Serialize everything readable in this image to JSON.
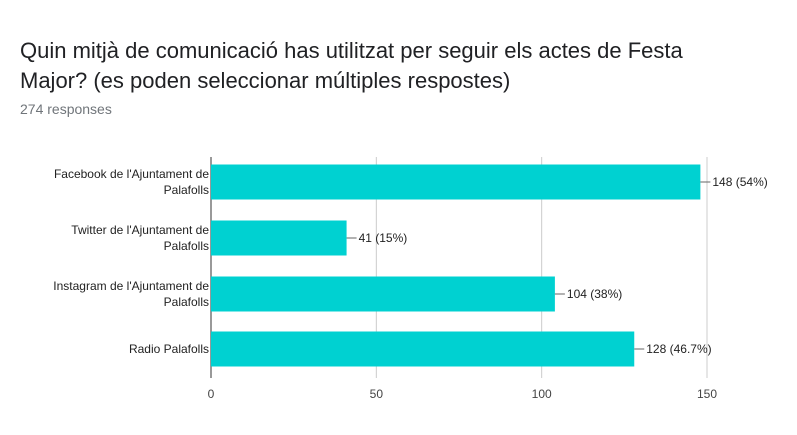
{
  "question": {
    "title": "Quin mitjà de comunicació has utilitzat per seguir els actes de Festa Major? (es poden seleccionar múltiples respostes)",
    "responses": "274 responses"
  },
  "chart_data": {
    "type": "bar",
    "orientation": "horizontal",
    "title": "",
    "xlabel": "",
    "ylabel": "",
    "bar_color": "#00d1d1",
    "categories": [
      [
        "Facebook de l'Ajuntament de",
        "Palafolls"
      ],
      [
        "Twitter de l'Ajuntament de",
        "Palafolls"
      ],
      [
        "Instagram de l'Ajuntament de",
        "Palafolls"
      ],
      [
        "Radio Palafolls"
      ]
    ],
    "values": [
      148,
      41,
      104,
      128
    ],
    "data_labels": [
      "148 (54%)",
      "41 (15%)",
      "104 (38%)",
      "128 (46.7%)"
    ],
    "xlim": [
      0,
      150
    ],
    "ticks": [
      0,
      50,
      100,
      150
    ],
    "tick_labels": [
      "0",
      "50",
      "100",
      "150"
    ],
    "grid": true
  }
}
